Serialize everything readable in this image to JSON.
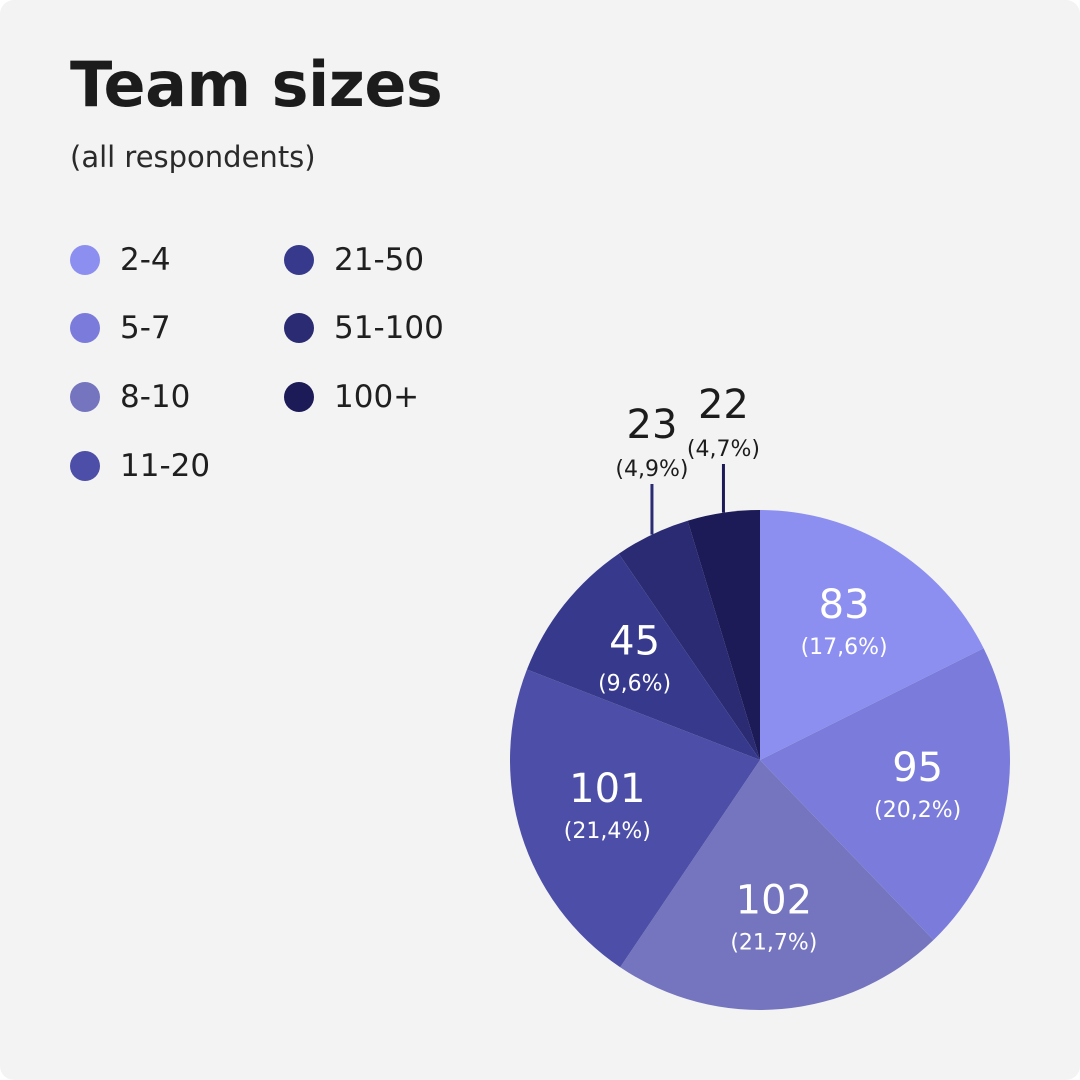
{
  "header": {
    "title": "Team sizes",
    "subtitle": "(all respondents)"
  },
  "chart_data": {
    "type": "pie",
    "title": "Team sizes",
    "subtitle": "(all respondents)",
    "legend_position": "top-left",
    "slices": [
      {
        "label": "2-4",
        "value": 83,
        "percent_label": "(17,6%)",
        "color": "#8c8ff0"
      },
      {
        "label": "5-7",
        "value": 95,
        "percent_label": "(20,2%)",
        "color": "#7a7bdb"
      },
      {
        "label": "8-10",
        "value": 102,
        "percent_label": "(21,7%)",
        "color": "#7574bf"
      },
      {
        "label": "11-20",
        "value": 101,
        "percent_label": "(21,4%)",
        "color": "#4c4ea8"
      },
      {
        "label": "21-50",
        "value": 45,
        "percent_label": "(9,6%)",
        "color": "#373a8c"
      },
      {
        "label": "51-100",
        "value": 23,
        "percent_label": "(4,9%)",
        "color": "#2b2b74"
      },
      {
        "label": "100+",
        "value": 22,
        "percent_label": "(4,7%)",
        "color": "#1c1a57"
      }
    ]
  }
}
